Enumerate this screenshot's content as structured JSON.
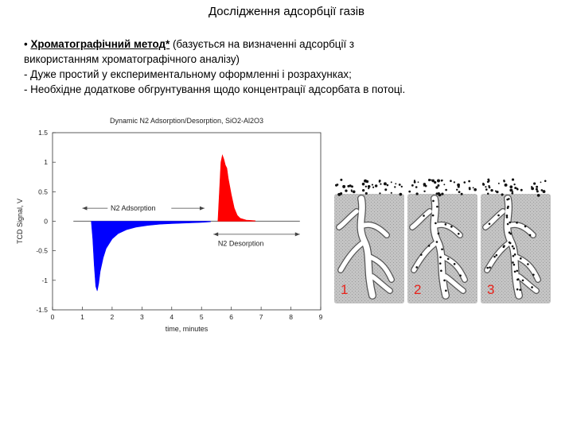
{
  "slide": {
    "title": "Дослідження адсорбції газів",
    "bullet_marker": "•",
    "method_name": "Хроматографічний метод*",
    "method_rest": " (базується на визначенні адсорбції з",
    "line2": "використанням хроматографічного аналізу)",
    "line3": "- Дуже простий у експериментальному оформленні і розрахунках;",
    "line4": "- Необхідне додаткове обгрунтування щодо концентрації адсорбата в потоці."
  },
  "chart_data": {
    "type": "area",
    "title": "Dynamic N2 Adsorption/Desorption, SiO2-Al2O3",
    "xlabel": "time, minutes",
    "ylabel": "TCD Signal, V",
    "xlim": [
      0,
      9
    ],
    "ylim": [
      -1.5,
      1.5
    ],
    "x_ticks": [
      0,
      1,
      2,
      3,
      4,
      5,
      6,
      7,
      8,
      9
    ],
    "y_ticks": [
      -1.5,
      -1,
      -0.5,
      0,
      0.5,
      1,
      1.5
    ],
    "y_tick_labels": [
      "-1.5",
      "-1",
      "-0.5",
      "0",
      "0.5",
      "1",
      "1.5"
    ],
    "annotations": [
      "N2 Adsorption",
      "N2 Desorption"
    ],
    "series": [
      {
        "color": "#0000ff",
        "x": [
          1.3,
          1.35,
          1.4,
          1.45,
          1.5,
          1.55,
          1.6,
          1.7,
          1.8,
          2.0,
          2.2,
          2.5,
          2.8,
          3.2,
          3.6,
          4.0,
          4.5,
          5.0,
          5.3
        ],
        "y": [
          0,
          -0.3,
          -0.75,
          -1.1,
          -1.18,
          -1.05,
          -0.85,
          -0.62,
          -0.46,
          -0.3,
          -0.21,
          -0.14,
          -0.1,
          -0.07,
          -0.05,
          -0.04,
          -0.03,
          -0.02,
          -0.01
        ]
      },
      {
        "color": "#ff0000",
        "x": [
          5.55,
          5.6,
          5.65,
          5.7,
          5.75,
          5.8,
          5.85,
          5.9,
          6.0,
          6.1,
          6.2,
          6.3,
          6.5,
          6.8
        ],
        "y": [
          0,
          0.5,
          1.0,
          1.12,
          1.05,
          0.95,
          0.9,
          0.72,
          0.45,
          0.22,
          0.1,
          0.05,
          0.02,
          0.01
        ]
      }
    ]
  },
  "figure": {
    "labels": [
      "1",
      "2",
      "3"
    ],
    "label_color": "#e8241c"
  }
}
